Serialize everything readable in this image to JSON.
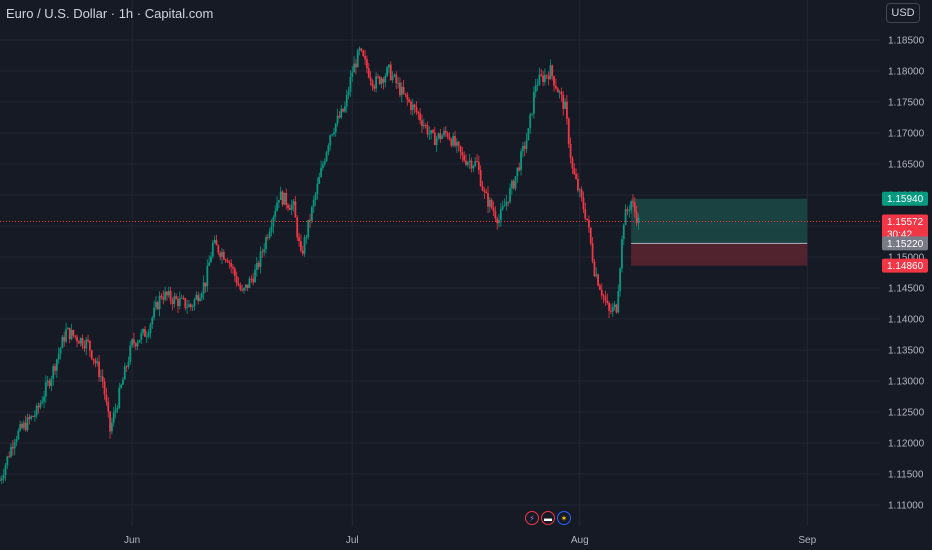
{
  "header": {
    "symbol_title": "Euro / U.S. Dollar · 1h · Capital.com",
    "currency": "USD"
  },
  "colors": {
    "background": "#161a25",
    "grid": "#232733",
    "up": "#089981",
    "down": "#f23645",
    "target_zone": "#1b4a45",
    "stop_zone": "#5b2630",
    "entry_tag": "#787b86"
  },
  "price_axis": {
    "ticks": [
      "1.18500",
      "1.18000",
      "1.17500",
      "1.17000",
      "1.16500",
      "1.16000",
      "1.15500",
      "1.15000",
      "1.14500",
      "1.14000",
      "1.13500",
      "1.13000",
      "1.12500",
      "1.12000",
      "1.11500",
      "1.11000"
    ]
  },
  "time_axis": {
    "labels": [
      "Jun",
      "Jul",
      "Aug",
      "Sep"
    ]
  },
  "price_tags": {
    "target": "1.15940",
    "current": "1.15572",
    "countdown": "30:42",
    "entry": "1.15220",
    "stop": "1.14860"
  },
  "event_icons": [
    "bolt-icon",
    "us-flag-icon",
    "eu-flag-icon"
  ],
  "chart_data": {
    "type": "candlestick",
    "title": "",
    "ylim": [
      1.1085,
      1.1898
    ],
    "x_range": [
      "2025-05-14",
      "2025-09-18"
    ],
    "series": [
      {
        "values": [
          [
            "2025-05-14",
            1.114
          ],
          [
            "2025-05-16",
            1.121
          ],
          [
            "2025-05-19",
            1.125
          ],
          [
            "2025-05-21",
            1.131
          ],
          [
            "2025-05-23",
            1.138
          ],
          [
            "2025-05-26",
            1.136
          ],
          [
            "2025-05-28",
            1.13
          ],
          [
            "2025-05-29",
            1.122
          ],
          [
            "2025-06-01",
            1.136
          ],
          [
            "2025-06-03",
            1.138
          ],
          [
            "2025-06-05",
            1.144
          ],
          [
            "2025-06-09",
            1.142
          ],
          [
            "2025-06-11",
            1.146
          ],
          [
            "2025-06-12",
            1.152
          ],
          [
            "2025-06-14",
            1.15
          ],
          [
            "2025-06-16",
            1.144
          ],
          [
            "2025-06-18",
            1.148
          ],
          [
            "2025-06-19",
            1.152
          ],
          [
            "2025-06-21",
            1.16
          ],
          [
            "2025-06-23",
            1.158
          ],
          [
            "2025-06-24",
            1.15
          ],
          [
            "2025-06-26",
            1.16
          ],
          [
            "2025-06-28",
            1.17
          ],
          [
            "2025-06-30",
            1.174
          ],
          [
            "2025-07-01",
            1.18
          ],
          [
            "2025-07-02",
            1.183
          ],
          [
            "2025-07-04",
            1.178
          ],
          [
            "2025-07-06",
            1.18
          ],
          [
            "2025-07-08",
            1.176
          ],
          [
            "2025-07-10",
            1.173
          ],
          [
            "2025-07-12",
            1.169
          ],
          [
            "2025-07-14",
            1.17
          ],
          [
            "2025-07-16",
            1.166
          ],
          [
            "2025-07-18",
            1.165
          ],
          [
            "2025-07-19",
            1.16
          ],
          [
            "2025-07-21",
            1.156
          ],
          [
            "2025-07-23",
            1.162
          ],
          [
            "2025-07-25",
            1.17
          ],
          [
            "2025-07-26",
            1.178
          ],
          [
            "2025-07-28",
            1.18
          ],
          [
            "2025-07-30",
            1.174
          ],
          [
            "2025-07-31",
            1.164
          ],
          [
            "2025-08-02",
            1.156
          ],
          [
            "2025-08-03",
            1.148
          ],
          [
            "2025-08-05",
            1.141
          ],
          [
            "2025-08-06",
            1.142
          ],
          [
            "2025-08-07",
            1.156
          ],
          [
            "2025-08-08",
            1.159
          ],
          [
            "2025-08-09",
            1.1557
          ]
        ]
      }
    ],
    "position": {
      "start": "2025-08-08",
      "end": "2025-09-01",
      "entry": 1.1522,
      "target": 1.1594,
      "stop": 1.1486,
      "current": 1.15572
    }
  }
}
